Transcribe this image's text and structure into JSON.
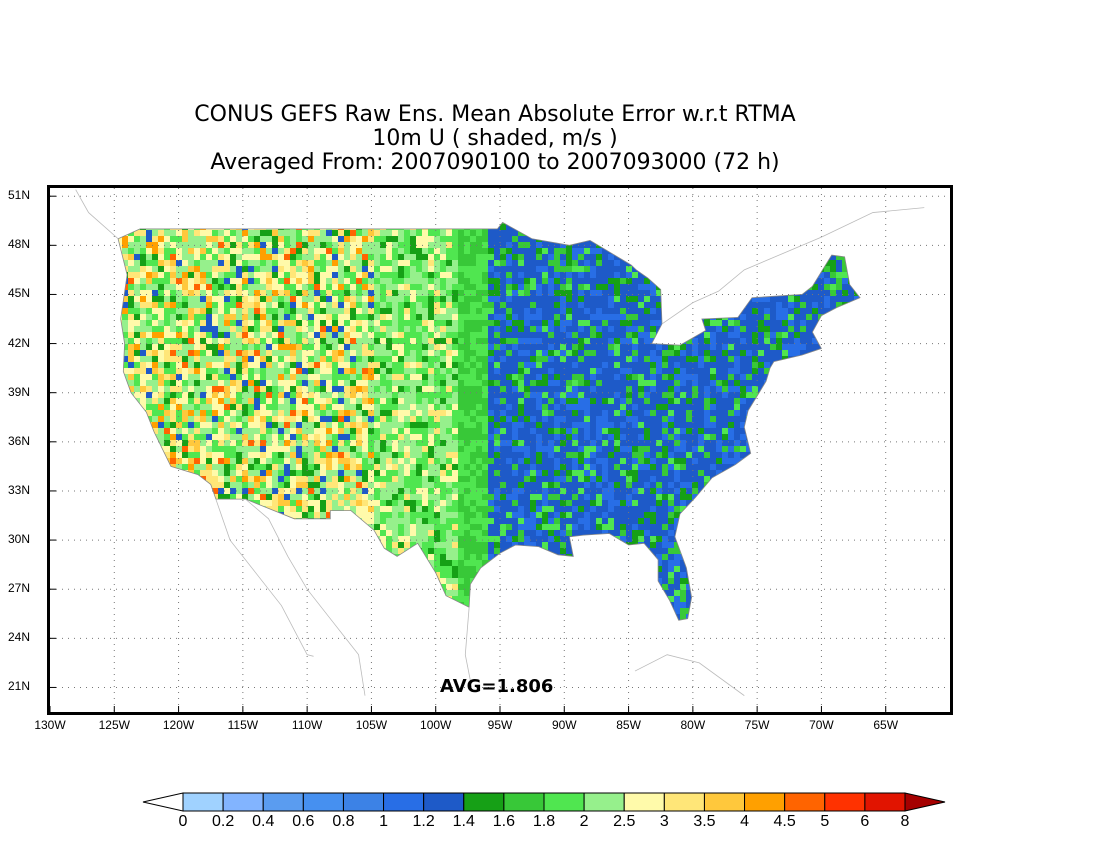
{
  "title": {
    "line1": "CONUS GEFS Raw Ens. Mean Absolute Error w.r.t RTMA",
    "line2": "10m U ( shaded, m/s )",
    "line3": "Averaged From: 2007090100 to 2007093000 (72 h)"
  },
  "map": {
    "projection": "lat-lon",
    "lon_range": [
      -130,
      -60
    ],
    "lat_range": [
      19.5,
      51.5
    ],
    "gridlines": "dotted",
    "lat_labels": [
      "51N",
      "48N",
      "45N",
      "42N",
      "39N",
      "36N",
      "33N",
      "30N",
      "27N",
      "24N",
      "21N"
    ],
    "lon_labels": [
      "130W",
      "125W",
      "120W",
      "115W",
      "110W",
      "105W",
      "100W",
      "95W",
      "90W",
      "85W",
      "80W",
      "75W",
      "70W",
      "65W"
    ],
    "avg_label": "AVG=1.806",
    "field_pattern": "west mostly 1.4-3.5 with orange/red patches in Rockies & Great Basin; central/east predominantly 0.8-1.4 blue; coasts green/yellow"
  },
  "colorbar": {
    "labels": [
      "0",
      "0.2",
      "0.4",
      "0.6",
      "0.8",
      "1",
      "1.2",
      "1.4",
      "1.6",
      "1.8",
      "2",
      "2.5",
      "3",
      "3.5",
      "4",
      "4.5",
      "5",
      "6",
      "8"
    ],
    "colors": [
      "#a0d2ff",
      "#82b4ff",
      "#5a9cf0",
      "#4690f0",
      "#3c82e6",
      "#286ee6",
      "#1e5ac8",
      "#16a016",
      "#38c838",
      "#50e650",
      "#96f08c",
      "#fffaaa",
      "#ffe678",
      "#ffc83c",
      "#ffa000",
      "#ff6400",
      "#ff3200",
      "#e11400",
      "#a50000"
    ],
    "under_color": "#ffffff",
    "over_color": "#a50000"
  }
}
